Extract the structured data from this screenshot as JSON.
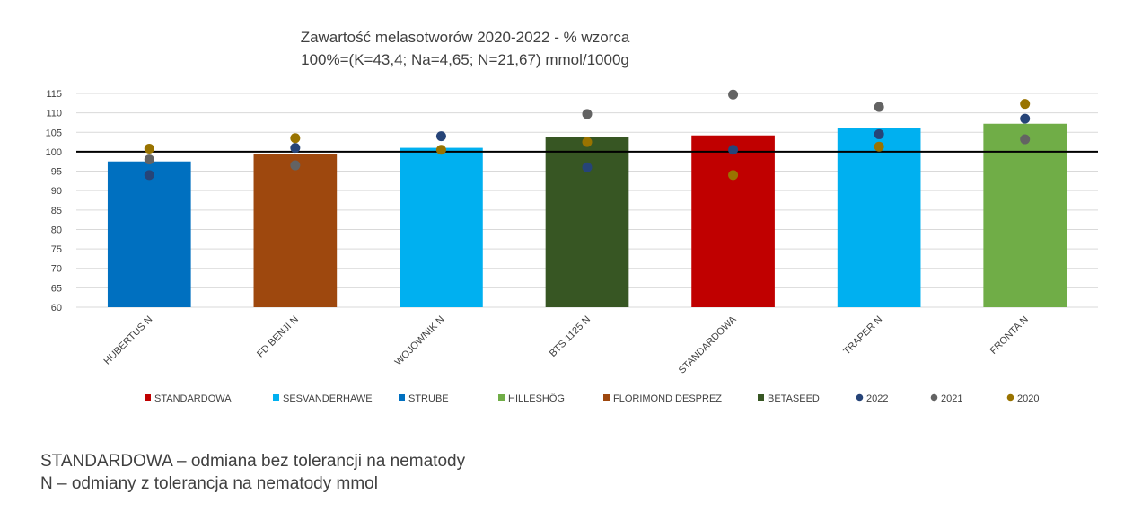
{
  "chart_data": {
    "type": "bar",
    "title": "Zawartość melasotworów 2020-2022 - % wzorca",
    "subtitle": "100%=(K=43,4; Na=4,65; N=21,67) mmol/1000g",
    "xlabel": "",
    "ylabel": "",
    "ylim": [
      60,
      115
    ],
    "yticks": [
      60,
      65,
      70,
      75,
      80,
      85,
      90,
      95,
      100,
      105,
      110,
      115
    ],
    "reference_line": 100,
    "grid": true,
    "legend_position": "bottom",
    "categories": [
      "HUBERTUS N",
      "FD BENJI N",
      "WOJOWNIK N",
      "BTS 1125 N",
      "STANDARDOWA",
      "TRAPER N",
      "FRONTA N"
    ],
    "values": [
      97.5,
      99.5,
      101,
      103.7,
      104.2,
      106.2,
      107.2
    ],
    "bar_groups": [
      "STRUBE",
      "FLORIMOND DESPREZ",
      "SESVANDERHAWE",
      "BETASEED",
      "STANDARDOWA",
      "SESVANDERHAWE",
      "HILLESHÖG"
    ],
    "bar_colors": [
      "#0070C0",
      "#9E480E",
      "#00B0F0",
      "#375623",
      "#C00000",
      "#00B0F0",
      "#70AD47"
    ],
    "series": [
      {
        "name": "2022",
        "type": "scatter",
        "color": "#264478",
        "values": [
          94,
          101,
          104,
          96,
          100.5,
          104.5,
          108.5
        ]
      },
      {
        "name": "2021",
        "type": "scatter",
        "color": "#636363",
        "values": [
          98,
          96.5,
          null,
          109.7,
          114.7,
          111.5,
          103.2
        ]
      },
      {
        "name": "2020",
        "type": "scatter",
        "color": "#997300",
        "values": [
          100.8,
          103.5,
          100.5,
          102.5,
          94,
          101.3,
          112.3
        ]
      }
    ],
    "legend": [
      {
        "label": "STANDARDOWA",
        "color": "#C00000",
        "marker": "square"
      },
      {
        "label": "SESVANDERHAWE",
        "color": "#00B0F0",
        "marker": "square"
      },
      {
        "label": "STRUBE",
        "color": "#0070C0",
        "marker": "square"
      },
      {
        "label": "HILLESHÖG",
        "color": "#70AD47",
        "marker": "square"
      },
      {
        "label": "FLORIMOND DESPREZ",
        "color": "#9E480E",
        "marker": "square"
      },
      {
        "label": "BETASEED",
        "color": "#375623",
        "marker": "square"
      },
      {
        "label": "2022",
        "color": "#264478",
        "marker": "circle"
      },
      {
        "label": "2021",
        "color": "#636363",
        "marker": "circle"
      },
      {
        "label": "2020",
        "color": "#997300",
        "marker": "circle"
      }
    ]
  },
  "notes": {
    "line1": "STANDARDOWA – odmiana bez tolerancji na nematody",
    "line2": "N – odmiany z tolerancja na nematody mmol"
  }
}
